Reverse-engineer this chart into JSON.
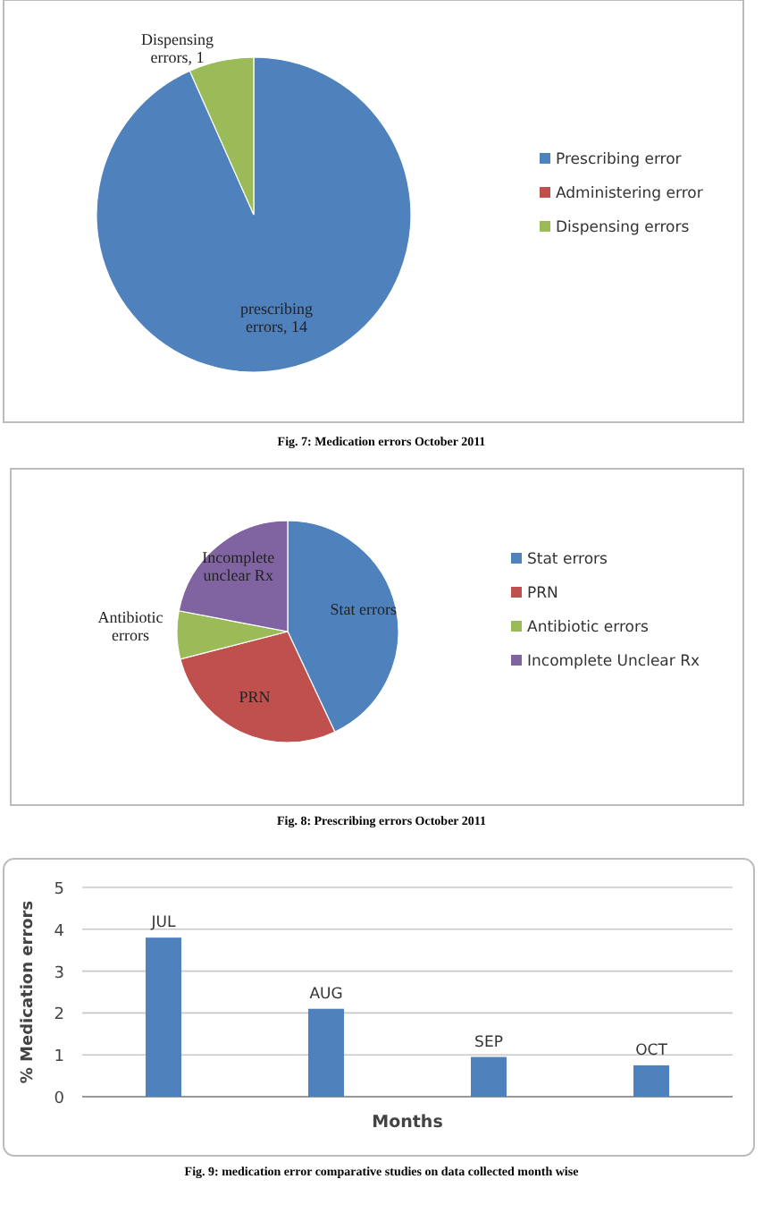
{
  "chart_data": [
    {
      "type": "pie",
      "title": "Fig. 7: Medication errors October 2011",
      "categories": [
        "Prescribing error",
        "Administering error",
        "Dispensing errors"
      ],
      "values": [
        14,
        0,
        1
      ],
      "colors": [
        "#4f81bd",
        "#c0504d",
        "#9bbb59"
      ],
      "value_labels": [
        "prescribing errors, 14",
        null,
        "Dispensing errors, 1"
      ],
      "legend": "right"
    },
    {
      "type": "pie",
      "title": "Fig. 8: Prescribing errors October 2011",
      "categories": [
        "Stat errors",
        "PRN",
        "Antibiotic errors",
        "Incomplete Unclear Rx"
      ],
      "values": [
        43,
        28,
        7,
        22
      ],
      "colors": [
        "#4f81bd",
        "#c0504d",
        "#9bbb59",
        "#8064a2"
      ],
      "value_labels": [
        "Stat errors",
        "PRN",
        "Antibiotic errors",
        "Incomplete unclear Rx"
      ],
      "legend": "right"
    },
    {
      "type": "bar",
      "title": "Fig. 9: medication error comparative studies on data collected month wise",
      "categories": [
        "JUL",
        "AUG",
        "SEP",
        "OCT"
      ],
      "values": [
        3.8,
        2.1,
        0.95,
        0.75
      ],
      "color": "#4f81bd",
      "xlabel": "Months",
      "ylabel": "% Medication errors",
      "ylim": [
        0,
        5
      ],
      "yticks": [
        0,
        1,
        2,
        3,
        4,
        5
      ],
      "grid": "y",
      "tick_labels": "y"
    }
  ]
}
